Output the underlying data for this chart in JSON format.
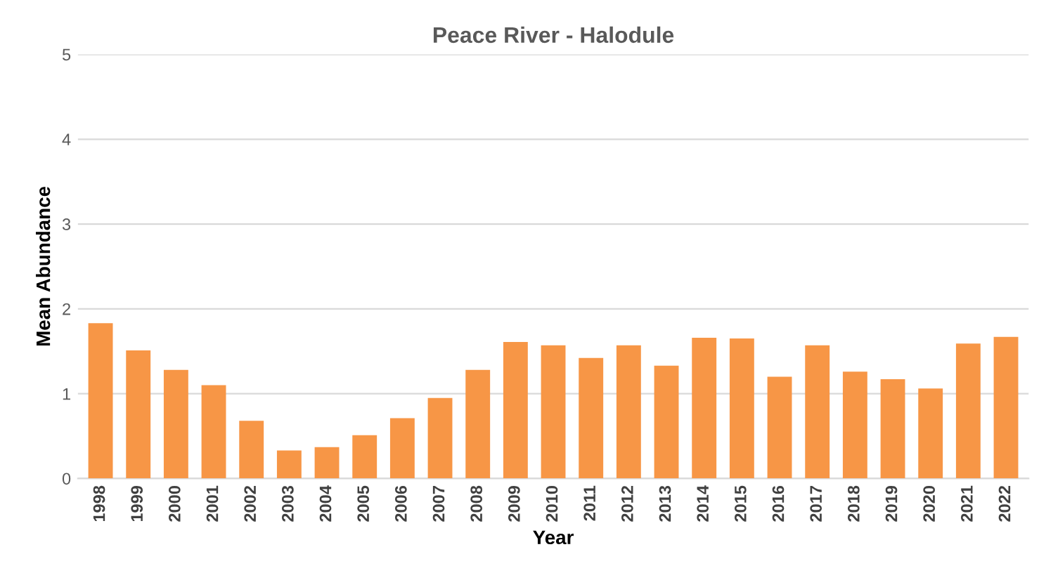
{
  "chart_data": {
    "type": "bar",
    "title": "Peace River - Halodule",
    "xlabel": "Year",
    "ylabel": "Mean Abundance",
    "categories": [
      "1998",
      "1999",
      "2000",
      "2001",
      "2002",
      "2003",
      "2004",
      "2005",
      "2006",
      "2007",
      "2008",
      "2009",
      "2010",
      "2011",
      "2012",
      "2013",
      "2014",
      "2015",
      "2016",
      "2017",
      "2018",
      "2019",
      "2020",
      "2021",
      "2022"
    ],
    "values": [
      1.83,
      1.51,
      1.28,
      1.1,
      0.68,
      0.33,
      0.37,
      0.51,
      0.71,
      0.95,
      1.28,
      1.61,
      1.57,
      1.42,
      1.57,
      1.33,
      1.66,
      1.65,
      1.2,
      1.57,
      1.26,
      1.17,
      1.06,
      1.59,
      1.67
    ],
    "color": "#f79646",
    "ylim": [
      0,
      5
    ],
    "yticks": [
      0,
      1,
      2,
      3,
      4,
      5
    ],
    "grid": "y"
  }
}
